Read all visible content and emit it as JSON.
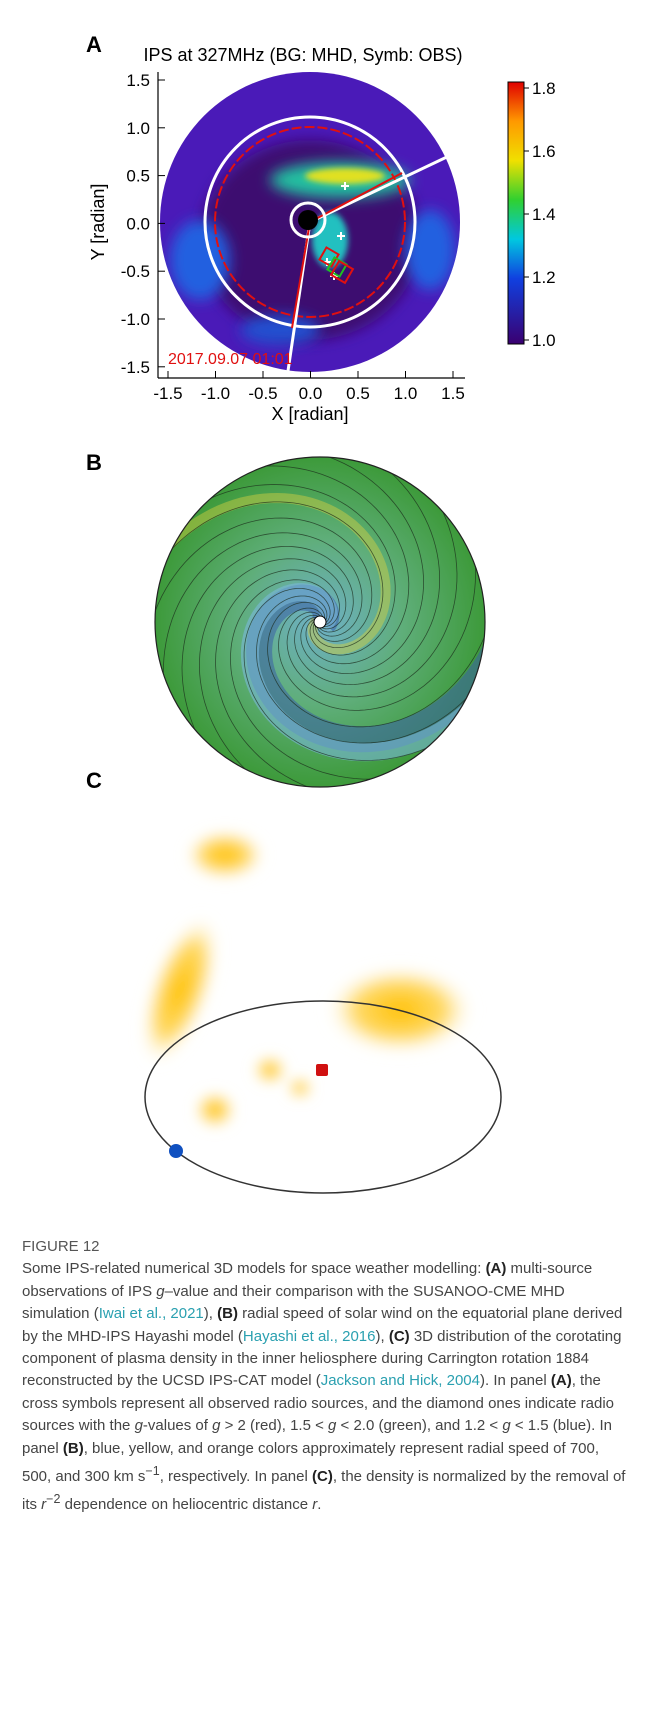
{
  "panel_a": {
    "label": "A",
    "title": "IPS at 327MHz (BG: MHD, Symb: OBS)",
    "x_label": "X [radian]",
    "y_label": "Y [radian]",
    "xtick_labels": [
      "-1.5",
      "-1.0",
      "-0.5",
      "0.0",
      "0.5",
      "1.0",
      "1.5"
    ],
    "ytick_labels": [
      "1.5",
      "1.0",
      "0.5",
      "0.0",
      "-0.5",
      "-1.0",
      "-1.5"
    ],
    "colorbar_labels": [
      "1.8",
      "1.6",
      "1.4",
      "1.2",
      "1.0"
    ],
    "timestamp": "2017.09.07 01:01"
  },
  "panel_b": {
    "label": "B"
  },
  "panel_c": {
    "label": "C"
  },
  "caption": {
    "heading": "FIGURE 12",
    "parts": [
      "Some IPS-related numerical 3D models for space weather modelling: ",
      "(A)",
      " multi-source observations of IPS ",
      "g",
      "–value and their comparison with the SUSANOO-CME MHD simulation (",
      "Iwai et al., 2021",
      "), ",
      "(B)",
      " radial speed of solar wind on the equatorial plane derived by the MHD-IPS Hayashi model (",
      "Hayashi et al., 2016",
      "), ",
      "(C)",
      " 3D distribution of the corotating component of plasma density in the inner heliosphere during Carrington rotation 1884 reconstructed by the UCSD IPS-CAT model (",
      "Jackson and Hick, 2004",
      "). In panel ",
      "(A)",
      ", the cross symbols represent all observed radio sources, and the diamond ones indicate radio sources with the ",
      "g",
      "-values of ",
      "g",
      " > 2 (red), 1.5 < ",
      "g",
      " < 2.0 (green), and 1.2 < ",
      "g",
      " < 1.5 (blue). In panel ",
      "(B)",
      ", blue, yellow, and orange colors approximately represent radial speed of 700, 500, and 300 km s",
      "−1",
      ", respectively. In panel ",
      "(C)",
      ", the density is normalized by the removal of its ",
      "r",
      "−2",
      " dependence on heliocentric distance ",
      "r",
      "."
    ]
  }
}
